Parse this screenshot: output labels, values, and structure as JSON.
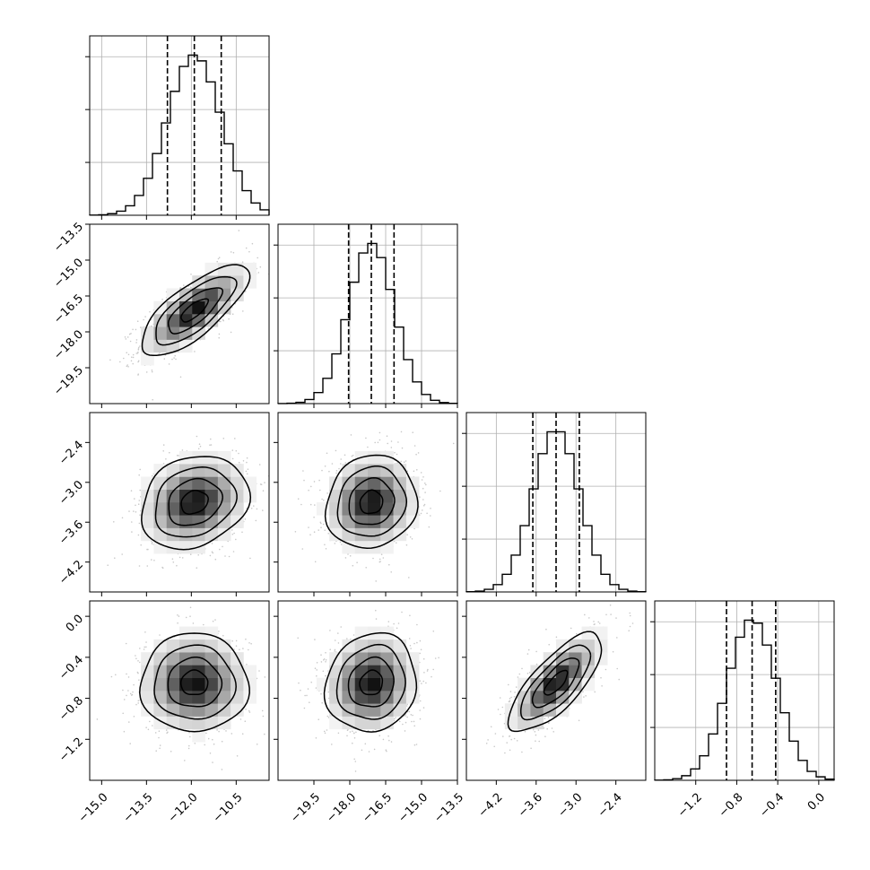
{
  "chart_data": {
    "type": "corner",
    "parameters": [
      {
        "center": -11.9,
        "q16": -12.8,
        "q84": -11.0,
        "sd": 0.9,
        "range": [
          -15.4,
          -9.4
        ],
        "ticks": [
          -15.0,
          -13.5,
          -12.0,
          -10.5
        ],
        "tick_labels": [
          "−15.0",
          "−13.5",
          "−12.0",
          "−10.5"
        ]
      },
      {
        "center": -17.1,
        "q16": -18.05,
        "q84": -16.15,
        "sd": 0.95,
        "range": [
          -21.0,
          -13.5
        ],
        "ticks": [
          -19.5,
          -18.0,
          -16.5,
          -15.0,
          -13.5
        ],
        "tick_labels": [
          "−19.5",
          "−18.0",
          "−16.5",
          "−15.0",
          "−13.5"
        ]
      },
      {
        "center": -3.3,
        "q16": -3.65,
        "q84": -2.95,
        "sd": 0.35,
        "range": [
          -4.65,
          -1.95
        ],
        "ticks": [
          -4.2,
          -3.6,
          -3.0,
          -2.4
        ],
        "tick_labels": [
          "−4.2",
          "−3.6",
          "−3.0",
          "−2.4"
        ]
      },
      {
        "center": -0.65,
        "q16": -0.9,
        "q84": -0.42,
        "sd": 0.24,
        "range": [
          -1.6,
          0.15
        ],
        "ticks": [
          -1.2,
          -0.8,
          -0.4,
          0.0
        ],
        "tick_labels": [
          "−1.2",
          "−0.8",
          "−0.4",
          "0.0"
        ]
      }
    ],
    "correlations": [
      [
        1.0,
        0.75,
        0.2,
        0.0
      ],
      [
        0.75,
        1.0,
        0.1,
        0.1
      ],
      [
        0.2,
        0.1,
        1.0,
        0.75
      ],
      [
        0.0,
        0.1,
        0.75,
        1.0
      ]
    ],
    "quantiles": [
      0.16,
      0.5,
      0.84
    ],
    "grid": true,
    "colors": {
      "line": "#000000",
      "scatter": "#9a9a9a",
      "grid": "#b0b0b0",
      "background": "#ffffff"
    }
  }
}
